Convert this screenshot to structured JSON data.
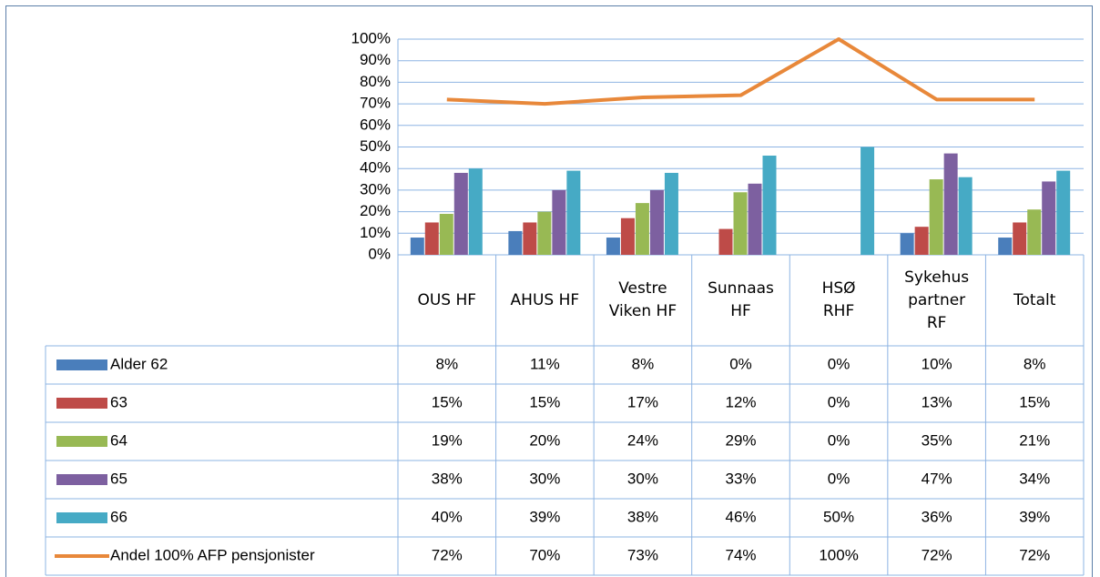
{
  "chart_data": {
    "type": "bar",
    "categories": [
      "OUS HF",
      "AHUS HF",
      "Vestre Viken HF",
      "Sunnaas HF",
      "HSØ RHF",
      "Sykehus partner RF",
      "Totalt"
    ],
    "ylim": [
      0,
      100
    ],
    "yticks": [
      {
        "value": 0,
        "label": "0%"
      },
      {
        "value": 10,
        "label": "10%"
      },
      {
        "value": 20,
        "label": "20%"
      },
      {
        "value": 30,
        "label": "30%"
      },
      {
        "value": 40,
        "label": "40%"
      },
      {
        "value": 50,
        "label": "50%"
      },
      {
        "value": 60,
        "label": "60%"
      },
      {
        "value": 70,
        "label": "70%"
      },
      {
        "value": 80,
        "label": "80%"
      },
      {
        "value": 90,
        "label": "90%"
      },
      {
        "value": 100,
        "label": "100%"
      }
    ],
    "grid": true,
    "series": [
      {
        "name": "Alder 62",
        "type": "bar",
        "color": "#4a7ebb",
        "values": [
          8,
          11,
          8,
          0,
          0,
          10,
          8
        ],
        "value_labels": [
          "8%",
          "11%",
          "8%",
          "0%",
          "0%",
          "10%",
          "8%"
        ]
      },
      {
        "name": "63",
        "type": "bar",
        "color": "#be4b48",
        "values": [
          15,
          15,
          17,
          12,
          0,
          13,
          15
        ],
        "value_labels": [
          "15%",
          "15%",
          "17%",
          "12%",
          "0%",
          "13%",
          "15%"
        ]
      },
      {
        "name": "64",
        "type": "bar",
        "color": "#98b954",
        "values": [
          19,
          20,
          24,
          29,
          0,
          35,
          21
        ],
        "value_labels": [
          "19%",
          "20%",
          "24%",
          "29%",
          "0%",
          "35%",
          "21%"
        ]
      },
      {
        "name": "65",
        "type": "bar",
        "color": "#7d60a0",
        "values": [
          38,
          30,
          30,
          33,
          0,
          47,
          34
        ],
        "value_labels": [
          "38%",
          "30%",
          "30%",
          "33%",
          "0%",
          "47%",
          "34%"
        ]
      },
      {
        "name": "66",
        "type": "bar",
        "color": "#46aac5",
        "values": [
          40,
          39,
          38,
          46,
          50,
          36,
          39
        ],
        "value_labels": [
          "40%",
          "39%",
          "38%",
          "46%",
          "50%",
          "36%",
          "39%"
        ]
      },
      {
        "name": "Andel 100% AFP pensjonister",
        "type": "line",
        "color": "#e8883a",
        "values": [
          72,
          70,
          73,
          74,
          100,
          72,
          72
        ],
        "value_labels": [
          "72%",
          "70%",
          "73%",
          "74%",
          "100%",
          "72%",
          "72%"
        ]
      }
    ]
  }
}
